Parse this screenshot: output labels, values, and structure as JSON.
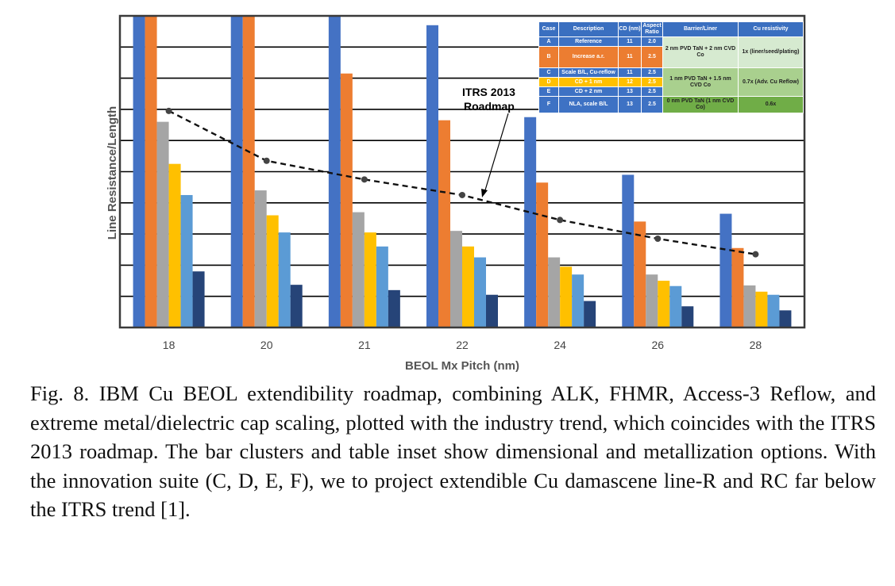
{
  "chart_data": {
    "type": "bar",
    "title": "",
    "xlabel": "BEOL Mx Pitch (nm)",
    "ylabel": "Line Resistance/Length",
    "categories": [
      "18",
      "20",
      "21",
      "22",
      "24",
      "26",
      "28"
    ],
    "ylim": [
      0,
      10
    ],
    "grid": true,
    "y_tick_labels_shown": false,
    "series": [
      {
        "name": "A",
        "color": "#4472c4",
        "values": [
          10.5,
          10.5,
          10.0,
          9.7,
          6.75,
          4.9,
          3.65
        ]
      },
      {
        "name": "B",
        "color": "#ed7d31",
        "values": [
          10.5,
          10.5,
          8.15,
          6.65,
          4.65,
          3.4,
          2.55
        ]
      },
      {
        "name": "C",
        "color": "#a5a5a5",
        "values": [
          6.6,
          4.4,
          3.7,
          3.1,
          2.25,
          1.7,
          1.35
        ]
      },
      {
        "name": "D",
        "color": "#ffc000",
        "values": [
          5.25,
          3.6,
          3.05,
          2.6,
          1.95,
          1.5,
          1.15
        ]
      },
      {
        "name": "E",
        "color": "#5b9bd5",
        "values": [
          4.25,
          3.05,
          2.6,
          2.25,
          1.7,
          1.33,
          1.05
        ]
      },
      {
        "name": "F",
        "color": "#264478",
        "values": [
          1.8,
          1.37,
          1.2,
          1.05,
          0.85,
          0.68,
          0.55
        ]
      }
    ],
    "trend_line": {
      "name": "ITRS 2013 Roadmap",
      "style": "dashed black line with circle markers",
      "values": [
        6.95,
        5.35,
        4.75,
        4.25,
        3.45,
        2.85,
        2.35
      ]
    },
    "annotation": {
      "line1": "ITRS 2013",
      "line2": "Roadmap"
    }
  },
  "inset_table": {
    "headers": [
      "Case",
      "Description",
      "CD (nm)",
      "Aspect Ratio",
      "Barrier/Liner",
      "Cu resistivity"
    ],
    "rows": [
      {
        "case": "A",
        "description": "Reference",
        "cd": "11",
        "ar": "2.0"
      },
      {
        "case": "B",
        "description": "Increase a.r.",
        "cd": "11",
        "ar": "2.5"
      },
      {
        "case": "C",
        "description": "Scale B/L, Cu-reflow",
        "cd": "11",
        "ar": "2.5"
      },
      {
        "case": "D",
        "description": "CD + 1 nm",
        "cd": "12",
        "ar": "2.5"
      },
      {
        "case": "E",
        "description": "CD + 2 nm",
        "cd": "13",
        "ar": "2.5"
      },
      {
        "case": "F",
        "description": "NLA, scale B/L",
        "cd": "13",
        "ar": "2.5"
      }
    ],
    "barrier_groups": [
      "2 nm PVD TaN + 2 nm CVD Co",
      "1 nm PVD TaN + 1.5 nm CVD Co",
      "0 nm PVD TaN (1 nm CVD Co)"
    ],
    "resistivity_groups": [
      "1x (liner/seed/plating)",
      "0.7x (Adv. Cu Reflow)",
      "0.6x"
    ]
  },
  "caption": "Fig. 8. IBM Cu BEOL extendibility roadmap, combining ALK, FHMR, Access-3 Reflow, and extreme metal/dielectric cap scaling, plotted with the industry trend, which coincides with the ITRS 2013 roadmap.  The bar clusters and table inset show dimensional and metallization options.  With the innovation suite (C, D, E, F), we  to project extendible Cu damascene line-R and RC far below the ITRS trend [1]."
}
